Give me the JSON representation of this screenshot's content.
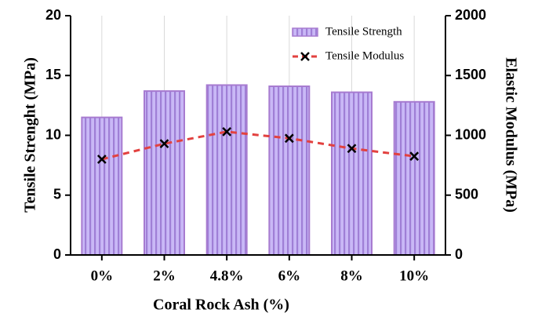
{
  "chart_data": {
    "type": "bar",
    "xlabel": "Coral Rock Ash (%)",
    "ylabel": "Tensile Strenght (MPa)",
    "y2label": "Elastic Modulus (MPa)",
    "categories": [
      "0%",
      "2%",
      "4.8%",
      "6%",
      "8%",
      "10%"
    ],
    "series": [
      {
        "name": "Tensile Strength",
        "type": "bar",
        "color": "#bcaaf0",
        "values": [
          11.5,
          13.7,
          14.2,
          14.1,
          13.6,
          12.8
        ]
      },
      {
        "name": "Tensile Modulus",
        "type": "line",
        "axis": "y2",
        "color": "#e2413f",
        "values": [
          800,
          930,
          1030,
          975,
          890,
          825
        ]
      }
    ],
    "ylim": [
      0,
      20
    ],
    "yticks": [
      0,
      5,
      10,
      15,
      20
    ],
    "y2lim": [
      0,
      2000
    ],
    "y2ticks": [
      0,
      500,
      1000,
      1500,
      2000
    ],
    "grid": true,
    "legend": "upper right"
  }
}
